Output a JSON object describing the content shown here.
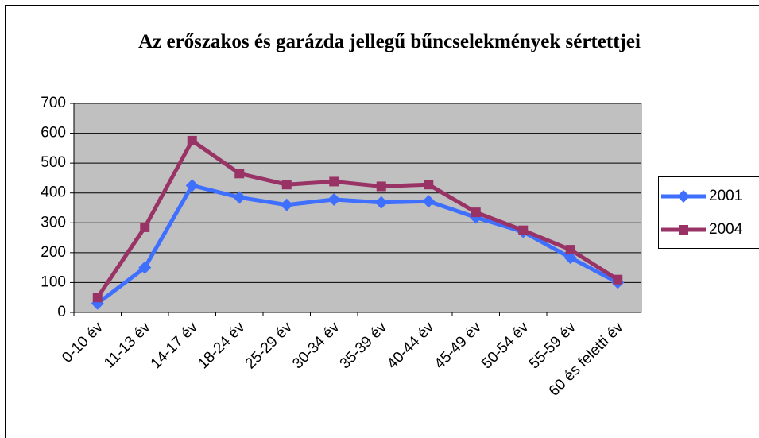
{
  "chart_data": {
    "type": "line",
    "title": "Az erőszakos és garázda jellegű bűncselekmények sértettjei",
    "categories": [
      "0-10 év",
      "11-13 év",
      "14-17 év",
      "18-24 év",
      "25-29 év",
      "30-34 év",
      "35-39 év",
      "40-44 év",
      "45-49 év",
      "50-54 év",
      "55-59 év",
      "60 és feletti év"
    ],
    "series": [
      {
        "name": "2001",
        "color": "#3f6fff",
        "marker": "diamond",
        "values": [
          30,
          150,
          425,
          385,
          360,
          378,
          368,
          372,
          318,
          270,
          183,
          100
        ]
      },
      {
        "name": "2004",
        "color": "#993366",
        "marker": "square",
        "values": [
          50,
          285,
          575,
          465,
          428,
          438,
          422,
          428,
          335,
          275,
          210,
          110
        ]
      }
    ],
    "ylim": [
      0,
      700
    ],
    "yticks": [
      0,
      100,
      200,
      300,
      400,
      500,
      600,
      700
    ],
    "grid": true,
    "legend": "right"
  }
}
